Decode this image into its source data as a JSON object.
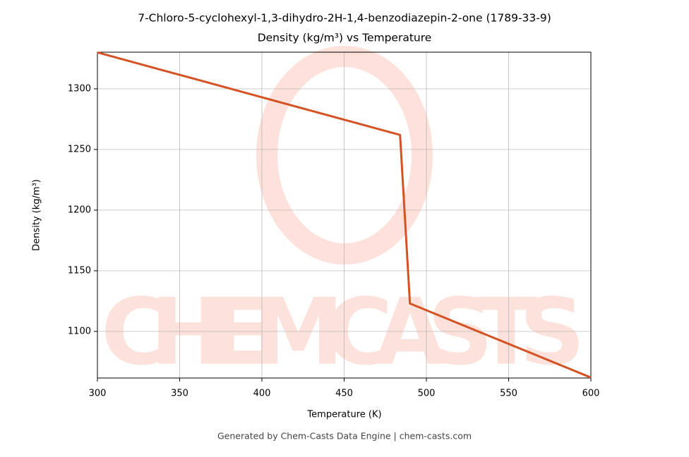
{
  "chart_data": {
    "type": "line",
    "title": "7-Chloro-5-cyclohexyl-1,3-dihydro-2H-1,4-benzodiazepin-2-one (1789-33-9)",
    "subtitle": "Density (kg/m³) vs Temperature",
    "x_label": "Temperature (K)",
    "y_label": "Density (kg/m³)",
    "watermark": "CHEMCASTS",
    "caption": "Generated by Chem-Casts Data Engine | chem-casts.com",
    "x": [
      300,
      484,
      490,
      600
    ],
    "series": [
      {
        "name": "Density",
        "color": "#d45324",
        "values": [
          1330,
          1262,
          1123,
          1062
        ]
      }
    ],
    "xlim": [
      300,
      600
    ],
    "xticks": [
      300,
      350,
      400,
      450,
      500,
      550,
      600
    ],
    "ylim": [
      1061.6,
      1330.2
    ],
    "yticks": [
      1100,
      1150,
      1200,
      1250,
      1300
    ],
    "grid": true
  }
}
